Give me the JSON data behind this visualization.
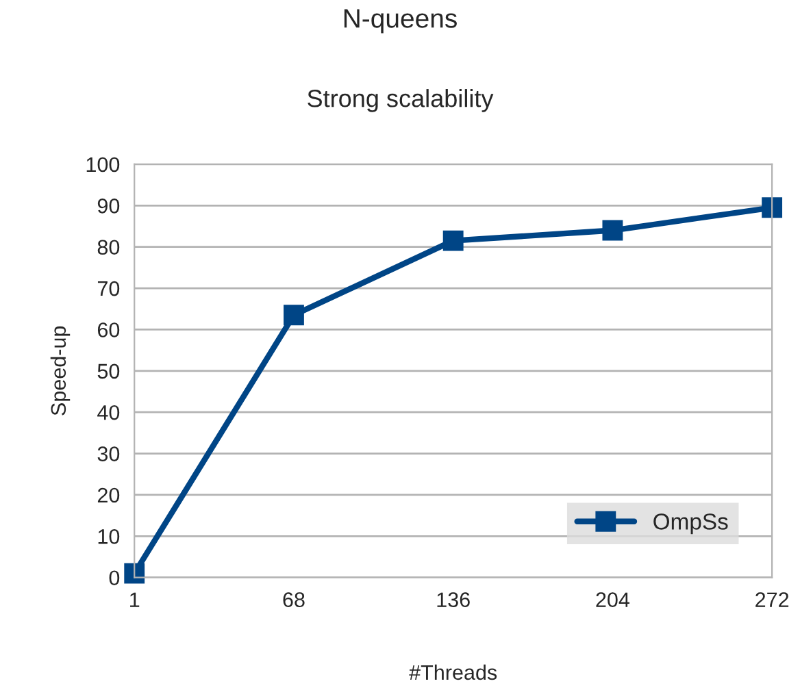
{
  "chart_data": {
    "type": "line",
    "title": "N-queens",
    "subtitle": "Strong scalability",
    "xlabel": "#Threads",
    "ylabel": "Speed-up",
    "categories": [
      "1",
      "68",
      "136",
      "204",
      "272"
    ],
    "series": [
      {
        "name": "OmpSs",
        "color": "#004586",
        "values": [
          1,
          63.5,
          81.5,
          84,
          89.5
        ]
      }
    ],
    "ylim": [
      0,
      100
    ],
    "yticks": [
      0,
      10,
      20,
      30,
      40,
      50,
      60,
      70,
      80,
      90,
      100
    ],
    "grid": "y",
    "legend": "bottom right",
    "marker": "square",
    "line_style": "solid"
  }
}
